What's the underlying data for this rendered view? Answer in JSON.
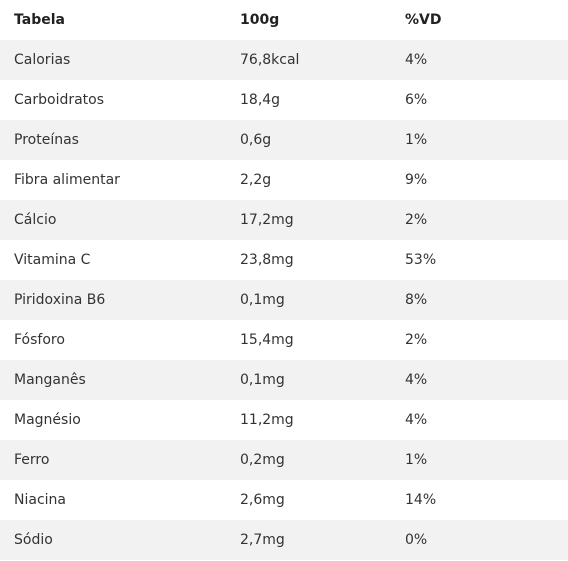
{
  "table": {
    "headers": [
      "Tabela",
      "100g",
      "%VD"
    ],
    "rows": [
      [
        "Calorias",
        "76,8kcal",
        "4%"
      ],
      [
        "Carboidratos",
        "18,4g",
        "6%"
      ],
      [
        "Proteínas",
        "0,6g",
        "1%"
      ],
      [
        "Fibra alimentar",
        "2,2g",
        "9%"
      ],
      [
        "Cálcio",
        "17,2mg",
        "2%"
      ],
      [
        "Vitamina C",
        "23,8mg",
        "53%"
      ],
      [
        "Piridoxina B6",
        "0,1mg",
        "8%"
      ],
      [
        "Fósforo",
        "15,4mg",
        "2%"
      ],
      [
        "Manganês",
        "0,1mg",
        "4%"
      ],
      [
        "Magnésio",
        "11,2mg",
        "4%"
      ],
      [
        "Ferro",
        "0,2mg",
        "1%"
      ],
      [
        "Niacina",
        "2,6mg",
        "14%"
      ],
      [
        "Sódio",
        "2,7mg",
        "0%"
      ]
    ]
  },
  "colors": {
    "stripe": "#f2f2f2",
    "background": "#ffffff",
    "text": "#333333"
  }
}
